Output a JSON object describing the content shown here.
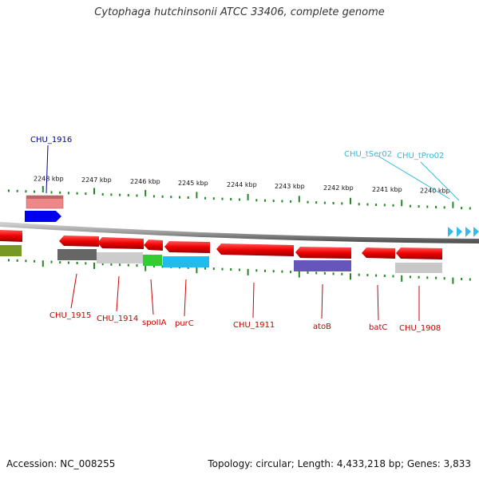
{
  "title": "Cytophaga hutchinsonii ATCC 33406, complete genome",
  "accession": "Accession: NC_008255",
  "topology": "Topology: circular; Length: 4,433,218 bp; Genes: 3,833",
  "kbp_ticks": [
    "2248 kbp",
    "2247 kbp",
    "2246 kbp",
    "2245 kbp",
    "2244 kbp",
    "2243 kbp",
    "2242 kbp",
    "2241 kbp",
    "2240 kbp"
  ],
  "gene_labels": {
    "above": [
      {
        "name": "CHU_1916",
        "color": "#000099"
      },
      {
        "name": "CHU_tSer02",
        "color": "#33bbdd"
      },
      {
        "name": "CHU_tPro02",
        "color": "#33bbdd"
      }
    ],
    "below": [
      "CHU_1915",
      "CHU_1914",
      "spoIIA",
      "purC",
      "CHU_1911",
      "atoB",
      "batC",
      "CHU_1908"
    ]
  },
  "colors": {
    "gene_red": "#ee0000",
    "label_red": "#cc0000",
    "tick_green": "#228822",
    "backbone": "#888888",
    "trna_cyan": "#33bbee"
  }
}
